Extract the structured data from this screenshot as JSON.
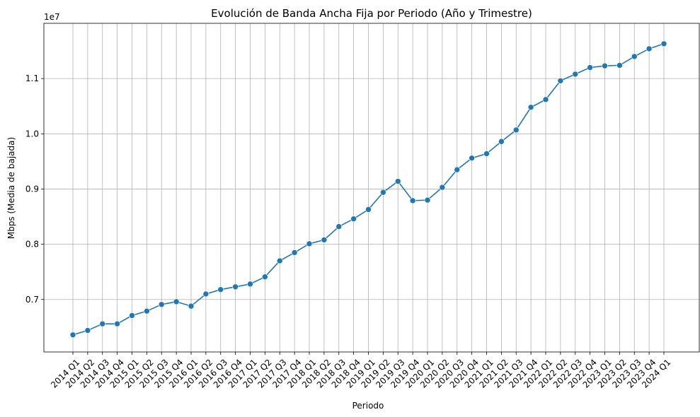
{
  "chart_data": {
    "type": "line",
    "title": "Evolución de Banda Ancha Fija por Periodo (Año y Trimestre)",
    "xlabel": "Periodo",
    "ylabel": "Mbps (Media de bajada)",
    "y_multiplier_label": "1e7",
    "ylim": [
      6.05,
      12.0
    ],
    "y_ticks": [
      0.7,
      0.8,
      0.9,
      1.0,
      1.1
    ],
    "y_tick_labels": [
      "0.7",
      "0.8",
      "0.9",
      "1.0",
      "1.1"
    ],
    "grid": true,
    "line_color": "#1f77b4",
    "categories": [
      "2014 Q1",
      "2014 Q2",
      "2014 Q3",
      "2014 Q4",
      "2015 Q1",
      "2015 Q2",
      "2015 Q3",
      "2015 Q4",
      "2016 Q1",
      "2016 Q2",
      "2016 Q3",
      "2016 Q4",
      "2017 Q1",
      "2017 Q2",
      "2017 Q3",
      "2017 Q4",
      "2018 Q1",
      "2018 Q2",
      "2018 Q3",
      "2018 Q4",
      "2019 Q1",
      "2019 Q2",
      "2019 Q3",
      "2019 Q4",
      "2020 Q1",
      "2020 Q2",
      "2020 Q3",
      "2020 Q4",
      "2021 Q1",
      "2021 Q2",
      "2021 Q3",
      "2021 Q4",
      "2022 Q1",
      "2022 Q2",
      "2022 Q3",
      "2022 Q4",
      "2023 Q1",
      "2023 Q2",
      "2023 Q3",
      "2023 Q4",
      "2024 Q1"
    ],
    "series": [
      {
        "values": [
          6.36,
          6.44,
          6.56,
          6.56,
          6.71,
          6.79,
          6.91,
          6.96,
          6.88,
          7.1,
          7.18,
          7.23,
          7.28,
          7.41,
          7.7,
          7.85,
          8.01,
          8.08,
          8.32,
          8.46,
          8.63,
          8.94,
          9.14,
          8.79,
          8.8,
          9.03,
          9.35,
          9.56,
          9.64,
          9.86,
          10.07,
          10.48,
          10.62,
          10.96,
          11.08,
          11.2,
          11.23,
          11.24,
          11.4,
          11.54,
          11.63
        ]
      }
    ]
  }
}
